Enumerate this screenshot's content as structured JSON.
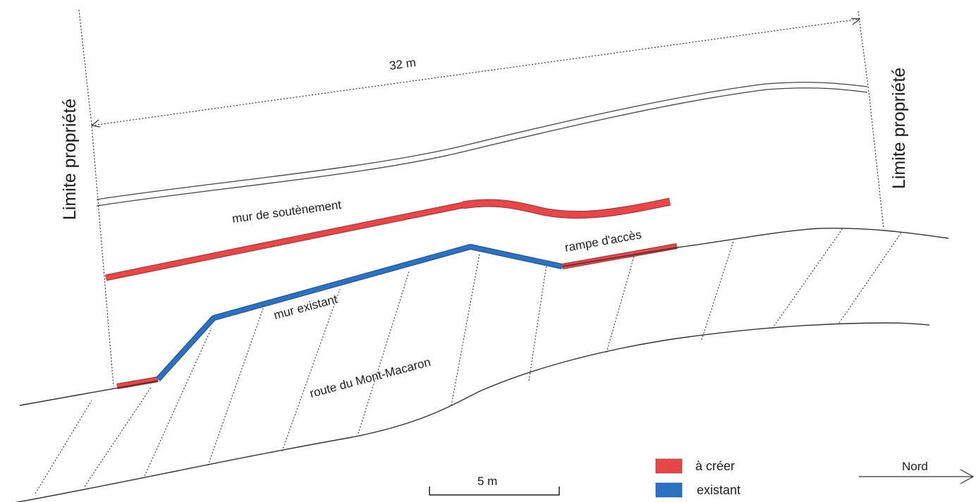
{
  "labels": {
    "dimension": "32 m",
    "property_limit_left": "Limite propriété",
    "property_limit_right": "Limite propriété",
    "retaining_wall": "mur de soutènement",
    "access_ramp": "rampe d'accès",
    "existing_wall": "mur existant",
    "road": "route du Mont-Macaron"
  },
  "scale_bar": {
    "label": "5 m"
  },
  "north_arrow": {
    "label": "Nord"
  },
  "legend": [
    {
      "label": "à créer",
      "color": "#e8474a"
    },
    {
      "label": "existant",
      "color": "#2b72c2"
    }
  ],
  "colors": {
    "new": "#e8474a",
    "existing": "#2b72c2",
    "line": "#333333"
  }
}
